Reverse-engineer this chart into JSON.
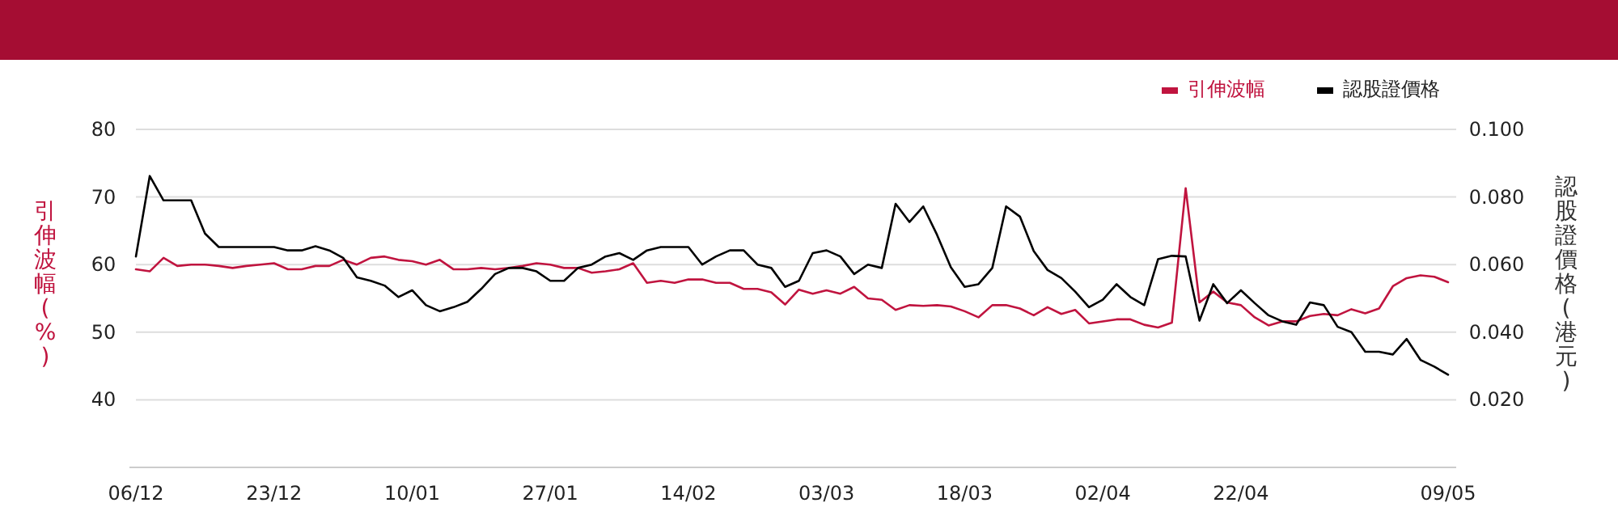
{
  "chart_data": {
    "type": "line",
    "categories": [
      "06/12",
      null,
      null,
      null,
      null,
      null,
      null,
      null,
      null,
      null,
      "23/12",
      null,
      null,
      null,
      null,
      null,
      null,
      null,
      null,
      null,
      "10/01",
      null,
      null,
      null,
      null,
      null,
      null,
      null,
      null,
      null,
      "27/01",
      null,
      null,
      null,
      null,
      null,
      null,
      null,
      null,
      null,
      "14/02",
      null,
      null,
      null,
      null,
      null,
      null,
      null,
      null,
      null,
      "03/03",
      null,
      null,
      null,
      null,
      null,
      null,
      null,
      null,
      null,
      "18/03",
      null,
      null,
      null,
      null,
      null,
      null,
      null,
      null,
      null,
      "02/04",
      null,
      null,
      null,
      null,
      null,
      null,
      null,
      null,
      null,
      "22/04",
      null,
      null,
      null,
      null,
      null,
      null,
      null,
      null,
      null,
      null,
      null,
      null,
      null,
      null,
      "09/05"
    ],
    "series": [
      {
        "name": "引伸波幅",
        "color": "#c0143f",
        "values": [
          59.3,
          59.0,
          61.0,
          59.8,
          60,
          60,
          59.8,
          59.5,
          59.8,
          60,
          60.2,
          59.3,
          59.3,
          59.8,
          59.8,
          60.7,
          60,
          61.0,
          61.2,
          60.7,
          60.5,
          60,
          60.7,
          59.3,
          59.3,
          59.5,
          59.3,
          59.5,
          59.8,
          60.2,
          60,
          59.5,
          59.5,
          58.8,
          59.0,
          59.3,
          60.2,
          57.3,
          57.6,
          57.3,
          57.8,
          57.8,
          57.3,
          57.3,
          56.4,
          56.4,
          55.9,
          54.1,
          56.3,
          55.7,
          56.2,
          55.7,
          56.7,
          55.0,
          54.8,
          53.3,
          54.0,
          53.9,
          54.0,
          53.8,
          53.1,
          52.2,
          54.0,
          54.0,
          53.5,
          52.5,
          53.7,
          52.7,
          53.3,
          51.3,
          51.6,
          51.9,
          51.9,
          51.1,
          50.7,
          51.4,
          71.3,
          54.4,
          56.0,
          54.4,
          54.0,
          52.2,
          51.0,
          51.6,
          51.6,
          52.4,
          52.7,
          52.5,
          53.4,
          52.8,
          53.5,
          56.8,
          58.0,
          58.4,
          58.2,
          57.4
        ]
      },
      {
        "name": "認股證價格",
        "color": "#000000",
        "axis": "y2",
        "values": [
          0.0624,
          0.0862,
          0.079,
          0.079,
          0.079,
          0.0692,
          0.0652,
          0.0652,
          0.0652,
          0.0652,
          0.0652,
          0.0642,
          0.0642,
          0.0654,
          0.0642,
          0.062,
          0.0562,
          0.0552,
          0.0538,
          0.0504,
          0.0524,
          0.048,
          0.0462,
          0.0474,
          0.049,
          0.0528,
          0.0572,
          0.059,
          0.059,
          0.058,
          0.0552,
          0.0552,
          0.059,
          0.06,
          0.0624,
          0.0634,
          0.0614,
          0.0642,
          0.0652,
          0.0652,
          0.0652,
          0.06,
          0.0624,
          0.0642,
          0.0642,
          0.06,
          0.059,
          0.0534,
          0.0552,
          0.0634,
          0.0642,
          0.0624,
          0.0572,
          0.06,
          0.059,
          0.078,
          0.0726,
          0.0772,
          0.0688,
          0.0592,
          0.0534,
          0.0542,
          0.059,
          0.0772,
          0.0742,
          0.064,
          0.0584,
          0.056,
          0.052,
          0.0474,
          0.0496,
          0.0542,
          0.0504,
          0.048,
          0.0616,
          0.0626,
          0.0624,
          0.0434,
          0.0542,
          0.0486,
          0.0524,
          0.0486,
          0.045,
          0.0432,
          0.0422,
          0.0488,
          0.048,
          0.0416,
          0.04,
          0.0342,
          0.0342,
          0.0334,
          0.038,
          0.0318,
          0.0298,
          0.0274
        ]
      }
    ],
    "ylabel": "引伸波幅(%)",
    "y2label": "認股證價格(港元)",
    "ylim": [
      30,
      80
    ],
    "yticks": [
      40,
      50,
      60,
      70,
      80
    ],
    "y2lim": [
      0,
      0.1
    ],
    "y2ticks": [
      {
        "value": 0.02,
        "label": "0.020"
      },
      {
        "value": 0.04,
        "label": "0.040"
      },
      {
        "value": 0.06,
        "label": "0.060"
      },
      {
        "value": 0.08,
        "label": "0.080"
      },
      {
        "value": 0.1,
        "label": "0.100"
      }
    ],
    "grid": "y",
    "legend": "top right"
  }
}
